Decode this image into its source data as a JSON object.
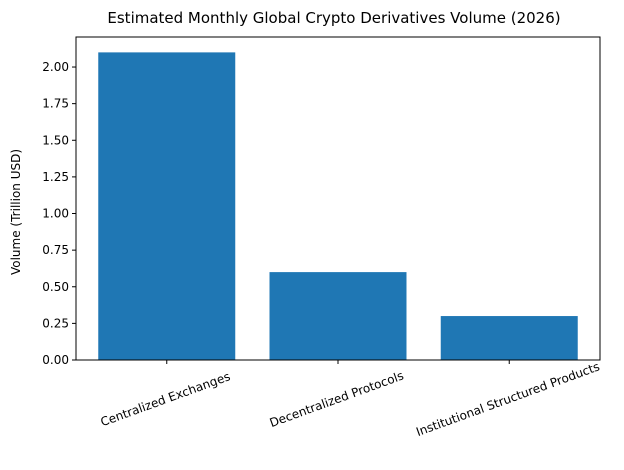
{
  "chart_data": {
    "type": "bar",
    "title": "Estimated Monthly Global Crypto Derivatives Volume (2026)",
    "xlabel": "",
    "ylabel": "Volume (Trillion USD)",
    "categories": [
      "Centralized Exchanges",
      "Decentralized Protocols",
      "Institutional Structured Products"
    ],
    "values": [
      2.1,
      0.6,
      0.3
    ],
    "ylim": [
      0,
      2.205
    ],
    "yticks": [
      "0.00",
      "0.25",
      "0.50",
      "0.75",
      "1.00",
      "1.25",
      "1.50",
      "1.75",
      "2.00"
    ],
    "bar_color": "#1f77b4",
    "grid": false,
    "legend": "none"
  }
}
